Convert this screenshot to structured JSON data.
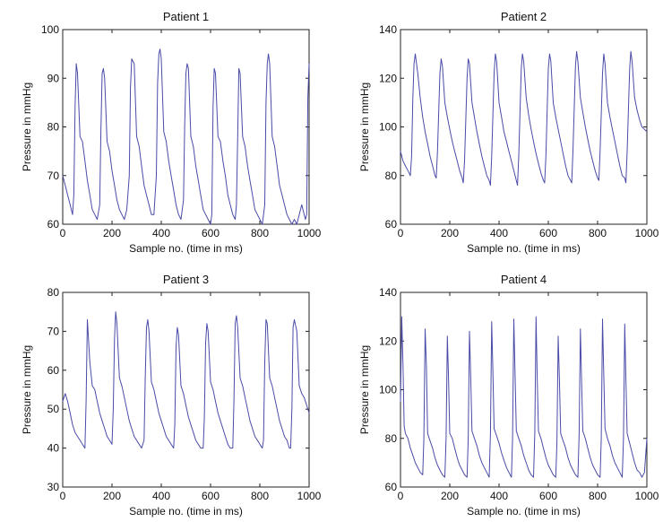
{
  "figure": {
    "line_color": "#4a4aa8"
  },
  "chart_data": [
    {
      "type": "line",
      "title": "Patient 1",
      "xlabel": "Sample no. (time in ms)",
      "ylabel": "Pressure in mmHg",
      "xlim": [
        0,
        1000
      ],
      "ylim": [
        60,
        100
      ],
      "xticks": [
        0,
        200,
        400,
        600,
        800,
        1000
      ],
      "yticks": [
        60,
        70,
        80,
        90,
        100
      ],
      "grid": false,
      "series": [
        {
          "x": [
            0,
            10,
            20,
            30,
            40,
            45,
            50,
            55,
            60,
            70,
            80,
            90,
            100,
            110,
            120,
            130,
            140,
            150,
            155,
            160,
            165,
            170,
            180,
            190,
            200,
            210,
            220,
            230,
            240,
            250,
            260,
            270,
            275,
            280,
            290,
            300,
            310,
            320,
            330,
            340,
            350,
            360,
            370,
            380,
            385,
            390,
            395,
            400,
            410,
            420,
            430,
            440,
            450,
            460,
            470,
            480,
            490,
            495,
            500,
            505,
            510,
            520,
            530,
            540,
            550,
            560,
            570,
            580,
            590,
            600,
            605,
            610,
            615,
            620,
            630,
            640,
            650,
            660,
            670,
            680,
            690,
            700,
            705,
            710,
            715,
            720,
            730,
            740,
            750,
            760,
            770,
            780,
            790,
            800,
            810,
            820,
            825,
            830,
            835,
            840,
            850,
            860,
            870,
            880,
            890,
            900,
            910,
            920,
            930,
            940,
            950,
            960,
            970,
            980,
            985,
            990,
            995,
            1000
          ],
          "y": [
            70,
            68,
            66,
            64,
            62,
            66,
            84,
            93,
            91,
            78,
            77,
            73,
            69,
            66,
            63,
            62,
            61,
            64,
            79,
            91,
            92,
            90,
            77,
            75,
            71,
            68,
            65,
            63,
            62,
            61,
            63,
            70,
            88,
            94,
            93,
            78,
            76,
            72,
            68,
            66,
            64,
            62,
            62,
            70,
            89,
            95,
            96,
            94,
            79,
            77,
            73,
            70,
            67,
            64,
            62,
            61,
            65,
            80,
            91,
            93,
            92,
            78,
            76,
            72,
            69,
            66,
            63,
            62,
            61,
            60,
            62,
            84,
            92,
            91,
            78,
            77,
            73,
            70,
            66,
            64,
            62,
            61,
            64,
            78,
            92,
            91,
            78,
            76,
            72,
            69,
            66,
            63,
            62,
            61,
            60,
            64,
            85,
            93,
            95,
            93,
            78,
            76,
            72,
            68,
            66,
            64,
            62,
            61,
            60,
            61,
            60,
            62,
            64,
            62,
            61,
            62,
            86,
            93
          ]
        }
      ]
    },
    {
      "type": "line",
      "title": "Patient 2",
      "xlabel": "Sample no. (time in ms)",
      "ylabel": "Pressure in mmHg",
      "xlim": [
        0,
        1000
      ],
      "ylim": [
        60,
        140
      ],
      "xticks": [
        0,
        200,
        400,
        600,
        800,
        1000
      ],
      "yticks": [
        60,
        80,
        100,
        120,
        140
      ],
      "grid": false,
      "series": [
        {
          "x": [
            0,
            10,
            20,
            30,
            40,
            45,
            50,
            55,
            60,
            70,
            80,
            90,
            100,
            110,
            120,
            130,
            140,
            145,
            150,
            160,
            165,
            170,
            180,
            190,
            200,
            210,
            220,
            230,
            240,
            250,
            255,
            260,
            270,
            275,
            280,
            290,
            300,
            310,
            320,
            330,
            340,
            350,
            360,
            365,
            370,
            380,
            385,
            390,
            400,
            410,
            420,
            430,
            440,
            450,
            460,
            470,
            475,
            480,
            490,
            495,
            500,
            510,
            520,
            530,
            540,
            550,
            560,
            570,
            580,
            585,
            590,
            600,
            605,
            610,
            620,
            630,
            640,
            650,
            660,
            670,
            680,
            690,
            695,
            700,
            710,
            715,
            720,
            730,
            740,
            750,
            760,
            770,
            780,
            790,
            800,
            805,
            810,
            820,
            825,
            830,
            840,
            850,
            860,
            870,
            880,
            890,
            900,
            910,
            915,
            920,
            930,
            935,
            940,
            950,
            960,
            970,
            980,
            990,
            1000
          ],
          "y": [
            90,
            86,
            84,
            82,
            80,
            88,
            112,
            126,
            130,
            122,
            112,
            104,
            98,
            93,
            88,
            84,
            80,
            79,
            90,
            122,
            128,
            125,
            110,
            104,
            99,
            94,
            90,
            86,
            82,
            79,
            77,
            86,
            120,
            128,
            126,
            110,
            104,
            98,
            93,
            88,
            84,
            80,
            78,
            76,
            88,
            122,
            130,
            127,
            110,
            104,
            98,
            94,
            90,
            86,
            82,
            78,
            76,
            88,
            124,
            130,
            127,
            112,
            105,
            99,
            94,
            89,
            85,
            81,
            78,
            77,
            88,
            124,
            130,
            127,
            110,
            104,
            99,
            94,
            89,
            84,
            80,
            78,
            77,
            90,
            125,
            131,
            127,
            112,
            106,
            100,
            95,
            90,
            86,
            82,
            79,
            78,
            90,
            122,
            130,
            126,
            110,
            104,
            99,
            94,
            89,
            84,
            80,
            79,
            77,
            90,
            124,
            131,
            127,
            112,
            107,
            103,
            100,
            99,
            98
          ]
        }
      ]
    },
    {
      "type": "line",
      "title": "Patient 3",
      "xlabel": "Sample no. (time in ms)",
      "ylabel": "Pressure in mmHg",
      "xlim": [
        0,
        1000
      ],
      "ylim": [
        30,
        80
      ],
      "xticks": [
        0,
        200,
        400,
        600,
        800,
        1000
      ],
      "yticks": [
        30,
        40,
        50,
        60,
        70,
        80
      ],
      "grid": false,
      "series": [
        {
          "x": [
            0,
            10,
            20,
            30,
            40,
            50,
            60,
            70,
            80,
            90,
            95,
            100,
            110,
            120,
            130,
            140,
            150,
            160,
            170,
            180,
            190,
            200,
            205,
            210,
            215,
            220,
            230,
            240,
            250,
            260,
            270,
            280,
            290,
            300,
            310,
            320,
            330,
            335,
            340,
            345,
            350,
            360,
            370,
            380,
            390,
            400,
            410,
            420,
            430,
            440,
            450,
            455,
            460,
            465,
            470,
            480,
            490,
            500,
            510,
            520,
            530,
            540,
            550,
            560,
            570,
            575,
            580,
            585,
            590,
            600,
            610,
            620,
            630,
            640,
            650,
            660,
            670,
            680,
            690,
            695,
            700,
            705,
            710,
            720,
            730,
            740,
            750,
            760,
            770,
            780,
            790,
            800,
            810,
            815,
            820,
            825,
            830,
            840,
            850,
            860,
            870,
            880,
            890,
            900,
            910,
            920,
            925,
            930,
            935,
            940,
            950,
            960,
            970,
            980,
            990,
            1000
          ],
          "y": [
            52,
            54,
            52,
            49,
            46,
            44,
            43,
            42,
            41,
            40,
            52,
            73,
            62,
            56,
            55,
            52,
            49,
            47,
            45,
            43,
            42,
            41,
            50,
            68,
            75,
            72,
            58,
            56,
            53,
            50,
            47,
            45,
            43,
            42,
            41,
            40,
            42,
            58,
            71,
            73,
            70,
            57,
            55,
            52,
            49,
            47,
            45,
            43,
            42,
            41,
            40,
            46,
            66,
            71,
            69,
            56,
            54,
            51,
            48,
            46,
            44,
            42,
            41,
            40,
            40,
            48,
            67,
            72,
            70,
            57,
            55,
            52,
            49,
            47,
            45,
            43,
            41,
            40,
            40,
            52,
            72,
            74,
            71,
            58,
            56,
            53,
            50,
            47,
            45,
            43,
            42,
            41,
            40,
            42,
            62,
            73,
            72,
            58,
            56,
            53,
            50,
            47,
            45,
            43,
            42,
            40,
            40,
            50,
            71,
            73,
            70,
            56,
            54,
            53,
            51,
            49
          ]
        }
      ]
    },
    {
      "type": "line",
      "title": "Patient 4",
      "xlabel": "Sample no. (time in ms)",
      "ylabel": "Pressure in mmHg",
      "xlim": [
        0,
        1000
      ],
      "ylim": [
        60,
        140
      ],
      "xticks": [
        0,
        200,
        400,
        600,
        800,
        1000
      ],
      "yticks": [
        60,
        80,
        100,
        120,
        140
      ],
      "grid": false,
      "series": [
        {
          "x": [
            0,
            5,
            10,
            15,
            20,
            30,
            40,
            50,
            60,
            70,
            80,
            90,
            95,
            100,
            105,
            110,
            120,
            130,
            140,
            150,
            160,
            170,
            180,
            185,
            190,
            195,
            200,
            210,
            220,
            230,
            240,
            250,
            260,
            270,
            275,
            280,
            285,
            290,
            300,
            310,
            320,
            330,
            340,
            350,
            360,
            365,
            370,
            375,
            380,
            390,
            400,
            410,
            420,
            430,
            440,
            450,
            455,
            460,
            465,
            470,
            480,
            490,
            500,
            510,
            520,
            530,
            540,
            545,
            550,
            555,
            560,
            570,
            580,
            590,
            600,
            610,
            620,
            630,
            635,
            640,
            645,
            650,
            660,
            670,
            680,
            690,
            700,
            710,
            720,
            725,
            730,
            735,
            740,
            750,
            760,
            770,
            780,
            790,
            800,
            810,
            815,
            820,
            825,
            830,
            840,
            850,
            860,
            870,
            880,
            890,
            900,
            905,
            910,
            915,
            920,
            930,
            940,
            950,
            960,
            970,
            980,
            990,
            1000
          ],
          "y": [
            95,
            130,
            110,
            85,
            82,
            80,
            76,
            73,
            70,
            68,
            66,
            65,
            80,
            125,
            110,
            82,
            79,
            76,
            72,
            69,
            67,
            65,
            64,
            80,
            122,
            105,
            82,
            80,
            76,
            72,
            69,
            67,
            65,
            64,
            80,
            124,
            105,
            83,
            80,
            77,
            73,
            70,
            68,
            66,
            64,
            82,
            128,
            108,
            84,
            81,
            78,
            74,
            71,
            68,
            66,
            64,
            80,
            129,
            106,
            83,
            80,
            77,
            73,
            70,
            67,
            65,
            64,
            82,
            130,
            105,
            83,
            80,
            76,
            72,
            69,
            67,
            65,
            64,
            78,
            122,
            104,
            82,
            79,
            76,
            72,
            69,
            67,
            65,
            64,
            82,
            125,
            104,
            83,
            80,
            76,
            72,
            69,
            67,
            65,
            64,
            80,
            129,
            106,
            84,
            80,
            77,
            73,
            70,
            68,
            66,
            64,
            80,
            127,
            104,
            82,
            78,
            74,
            70,
            67,
            66,
            64,
            66,
            80
          ]
        }
      ]
    }
  ]
}
